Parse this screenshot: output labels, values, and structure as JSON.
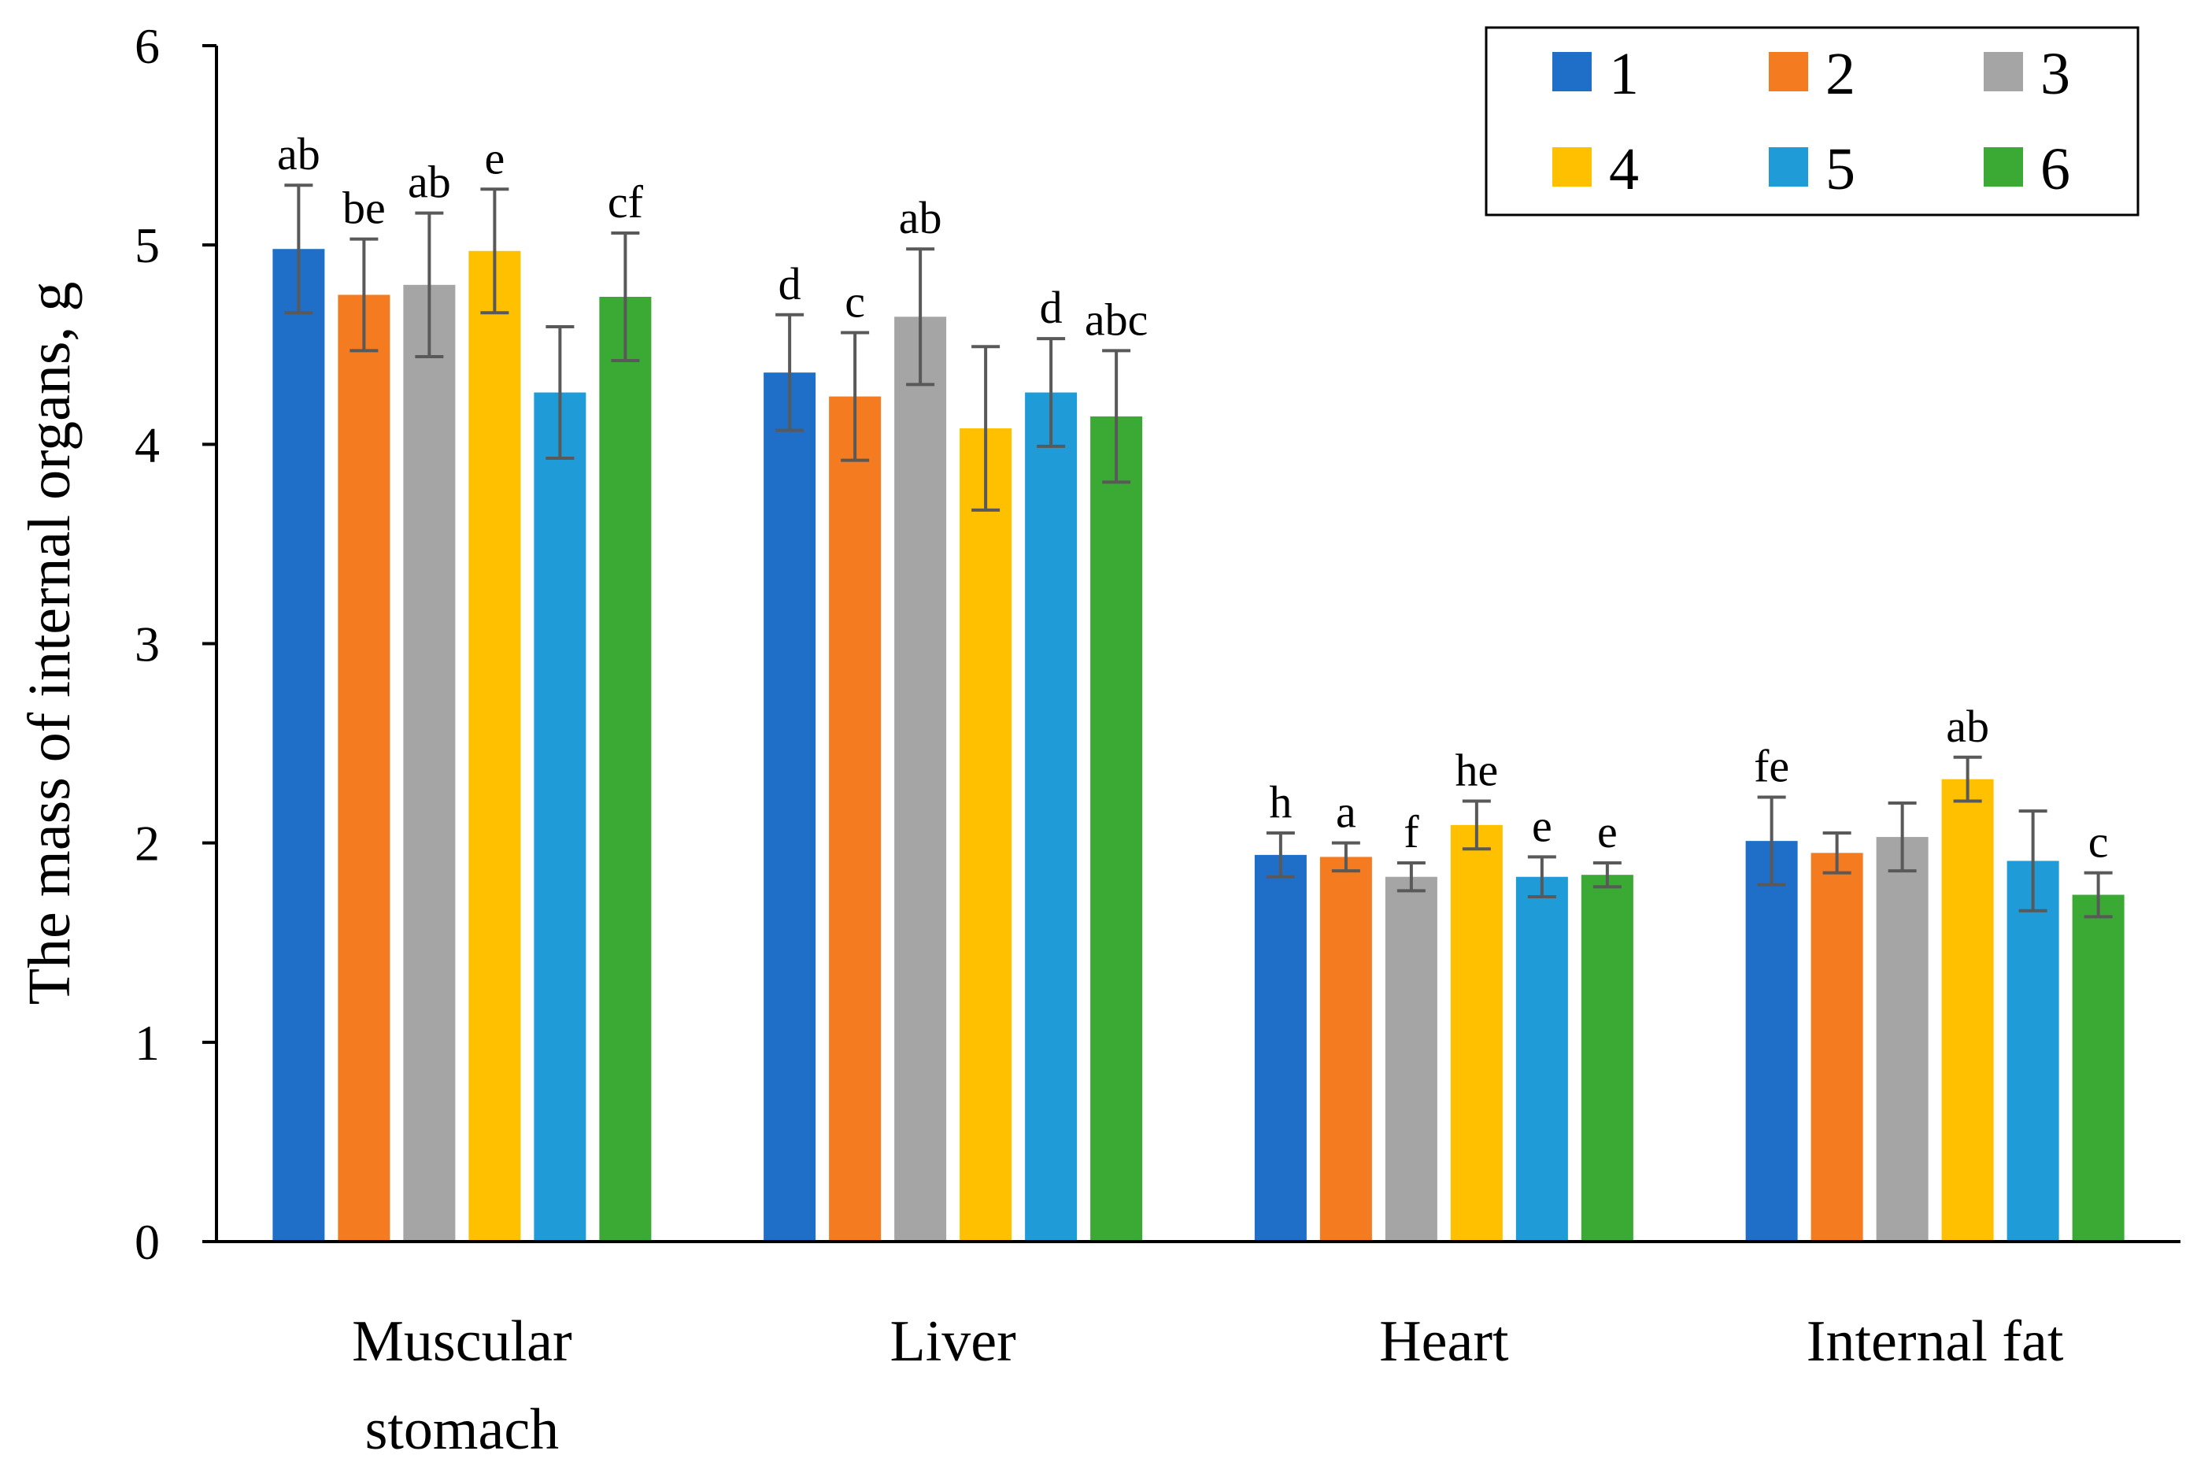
{
  "chart_data": {
    "type": "bar",
    "title": "",
    "xlabel": "",
    "ylabel": "The mass of internal organs, g",
    "ylim": [
      0,
      6
    ],
    "yticks": [
      "0",
      "1",
      "2",
      "3",
      "4",
      "5",
      "6"
    ],
    "grid": false,
    "legend_position": "top-right",
    "categories": [
      {
        "lines": [
          "Muscular",
          "stomach"
        ]
      },
      {
        "lines": [
          "Liver"
        ]
      },
      {
        "lines": [
          "Heart"
        ]
      },
      {
        "lines": [
          "Internal fat"
        ]
      }
    ],
    "series": [
      {
        "name": "1",
        "color": "#1f6fc8",
        "values": [
          4.98,
          4.36,
          1.94,
          2.01
        ],
        "errors": [
          0.32,
          0.29,
          0.11,
          0.22
        ],
        "labels": [
          "ab",
          "d",
          "h",
          "fe"
        ]
      },
      {
        "name": "2",
        "color": "#f47b20",
        "values": [
          4.75,
          4.24,
          1.93,
          1.95
        ],
        "errors": [
          0.28,
          0.32,
          0.07,
          0.1
        ],
        "labels": [
          "be",
          "c",
          "a",
          ""
        ]
      },
      {
        "name": "3",
        "color": "#a5a5a5",
        "values": [
          4.8,
          4.64,
          1.83,
          2.03
        ],
        "errors": [
          0.36,
          0.34,
          0.07,
          0.17
        ],
        "labels": [
          "ab",
          "ab",
          "f",
          ""
        ]
      },
      {
        "name": "4",
        "color": "#ffc000",
        "values": [
          4.97,
          4.08,
          2.09,
          2.32
        ],
        "errors": [
          0.31,
          0.41,
          0.12,
          0.11
        ],
        "labels": [
          "e",
          "",
          "he",
          "ab"
        ]
      },
      {
        "name": "5",
        "color": "#1f9bd7",
        "values": [
          4.26,
          4.26,
          1.83,
          1.91
        ],
        "errors": [
          0.33,
          0.27,
          0.1,
          0.25
        ],
        "labels": [
          "",
          "d",
          "e",
          ""
        ]
      },
      {
        "name": "6",
        "color": "#3aaa35",
        "values": [
          4.74,
          4.14,
          1.84,
          1.74
        ],
        "errors": [
          0.32,
          0.33,
          0.06,
          0.11
        ],
        "labels": [
          "cf",
          "abc",
          "e",
          "c"
        ]
      }
    ],
    "error_bar_color": "#595959"
  }
}
